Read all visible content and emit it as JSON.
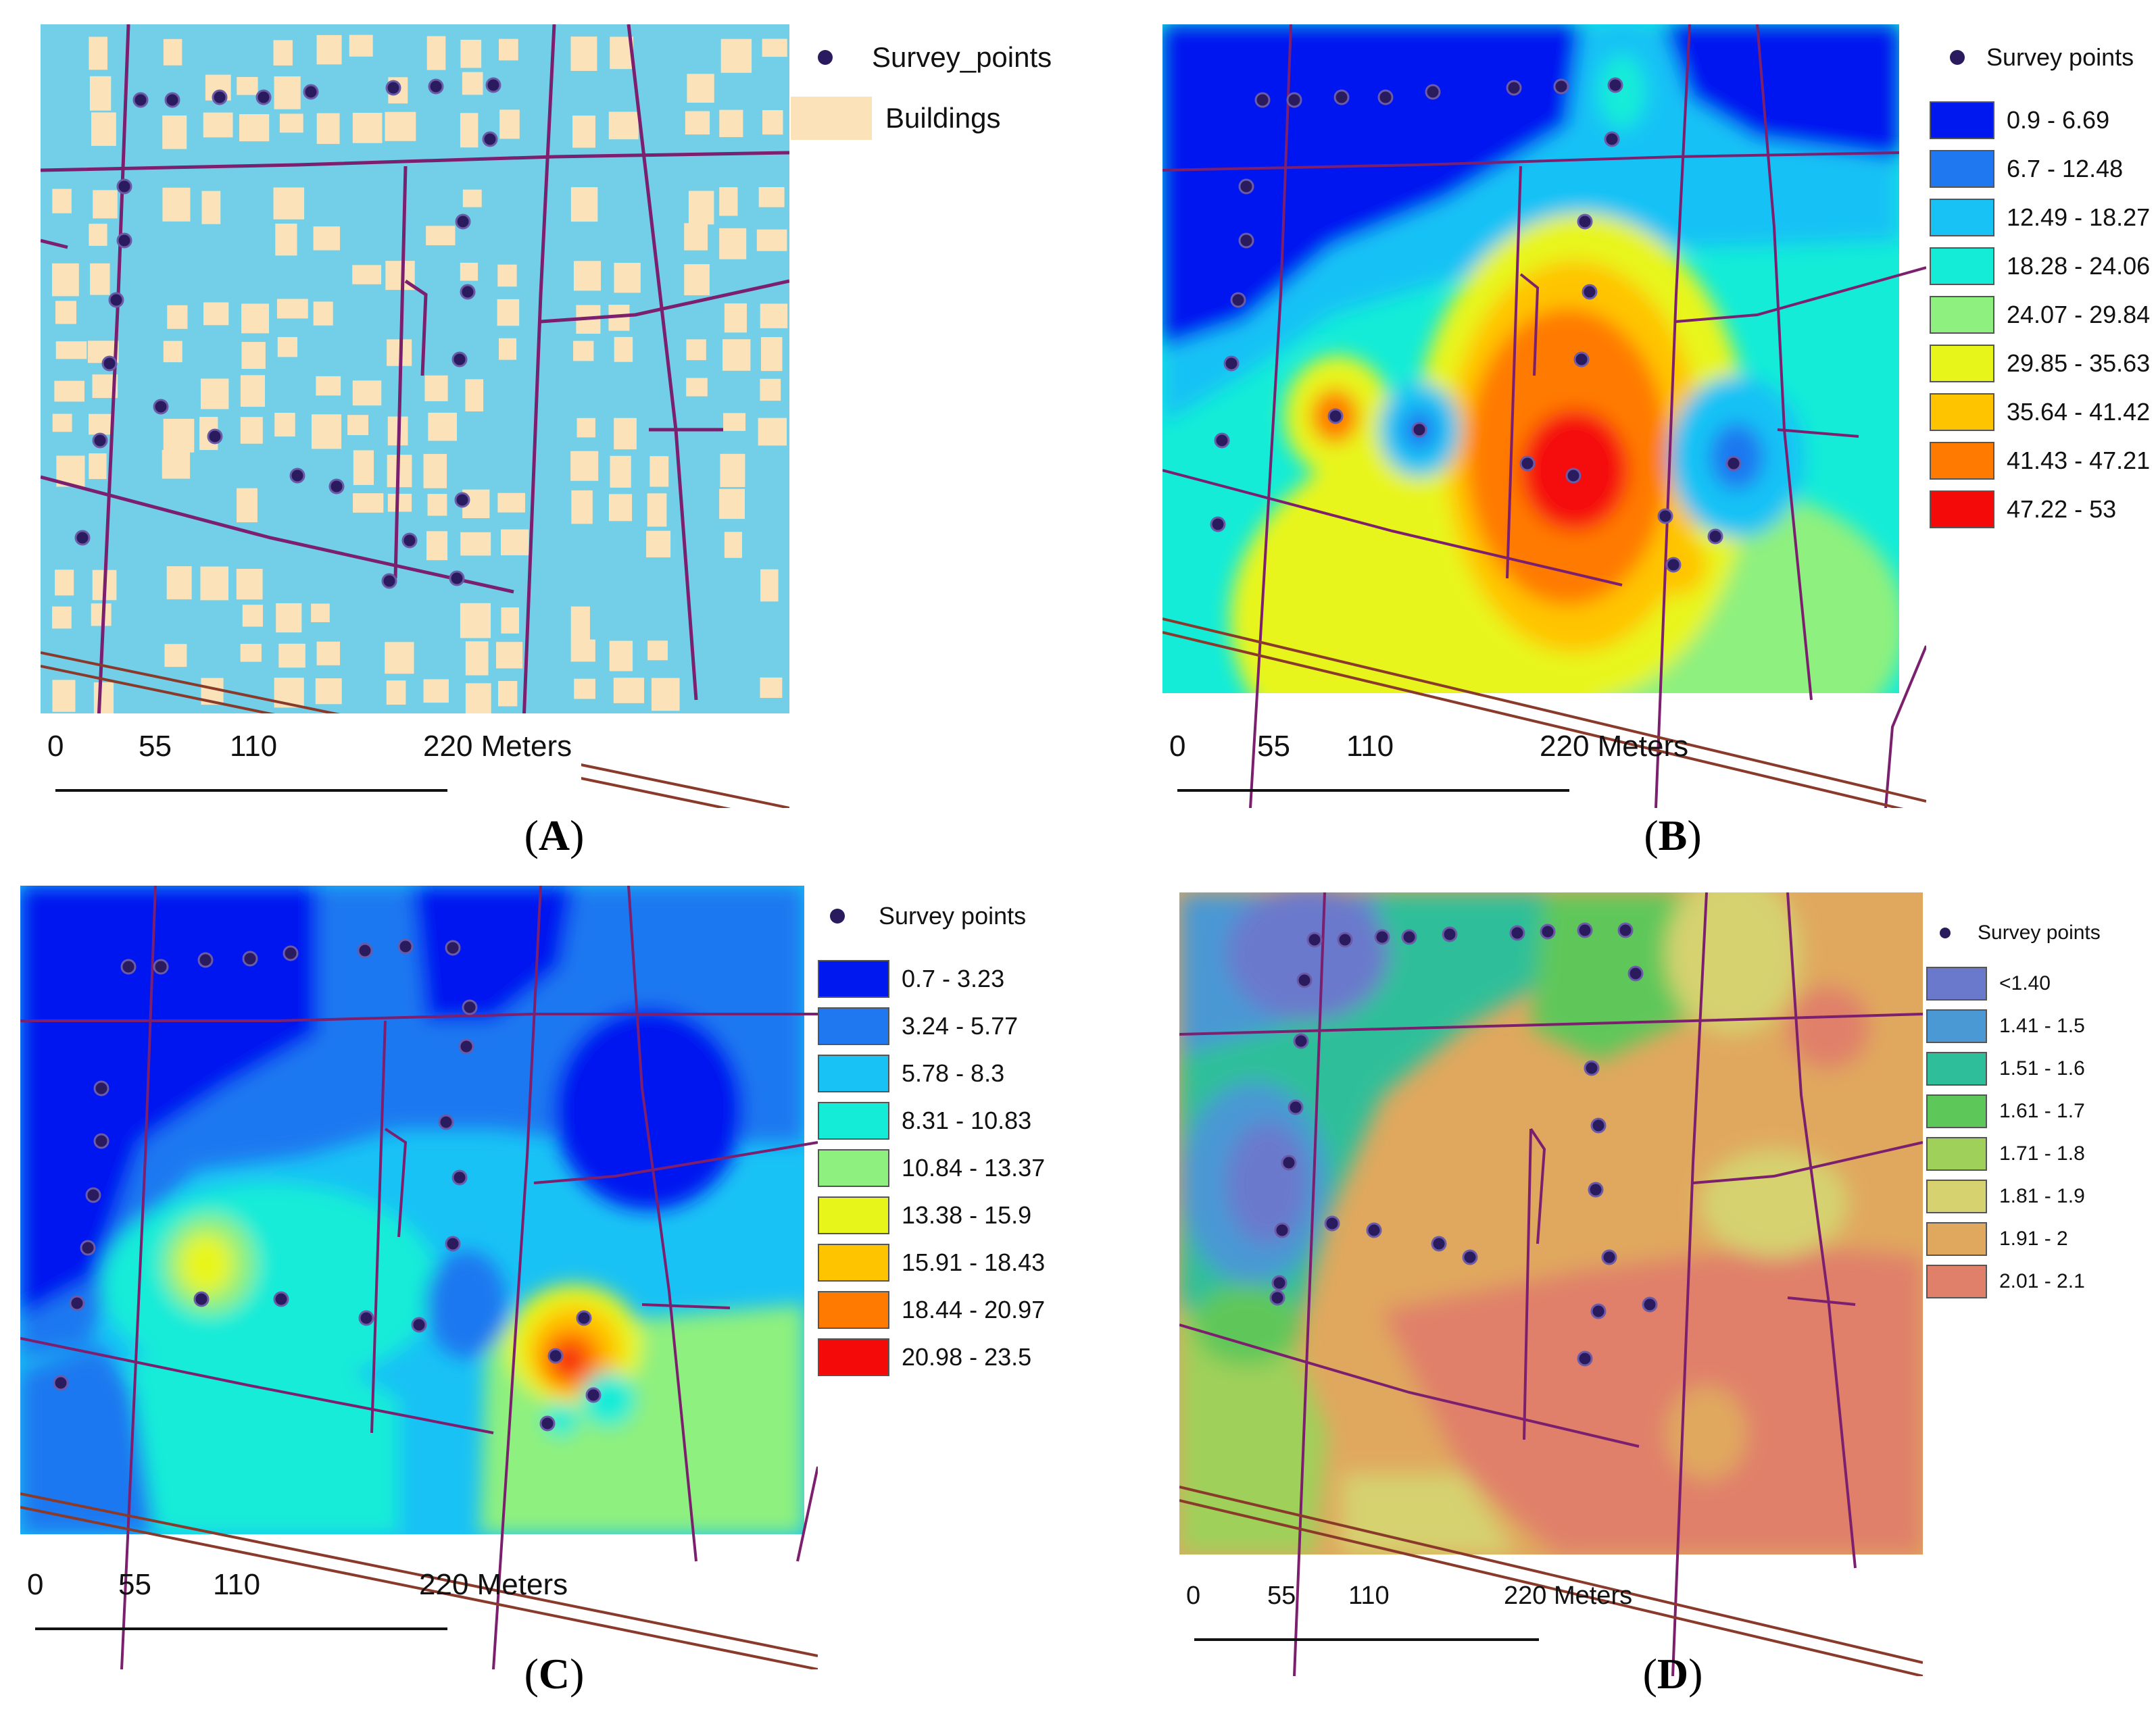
{
  "panels": {
    "A": {
      "caption": "A",
      "legend": {
        "points_label": "Survey_points",
        "buildings_label": "Buildings"
      },
      "colors": {
        "background": "#73cfe8",
        "buildings": "#fbe2b8",
        "roads": "#7b1f6e",
        "points": "#2a1a5e",
        "rail": "#8a3a2a"
      },
      "scale": [
        "0",
        "55",
        "110",
        "220 Meters"
      ]
    },
    "B": {
      "caption": "B",
      "legend": {
        "points_label": "Survey  points",
        "classes": [
          {
            "label": "0.9 - 6.69",
            "color": "#0018f0"
          },
          {
            "label": "6.7 - 12.48",
            "color": "#1f78f0"
          },
          {
            "label": "12.49 - 18.27",
            "color": "#19c2f5"
          },
          {
            "label": "18.28 - 24.06",
            "color": "#14ecd8"
          },
          {
            "label": "24.07 - 29.84",
            "color": "#8ef07e"
          },
          {
            "label": "29.85 - 35.63",
            "color": "#e8f51a"
          },
          {
            "label": "35.64 - 41.42",
            "color": "#ffc400"
          },
          {
            "label": "41.43 - 47.21",
            "color": "#ff7a00"
          },
          {
            "label": "47.22 - 53",
            "color": "#f50a0a"
          }
        ]
      },
      "scale": [
        "0",
        "55",
        "110",
        "220 Meters"
      ]
    },
    "C": {
      "caption": "C",
      "legend": {
        "points_label": "Survey  points",
        "classes": [
          {
            "label": "0.7 - 3.23",
            "color": "#0018f0"
          },
          {
            "label": "3.24 - 5.77",
            "color": "#1f78f0"
          },
          {
            "label": "5.78 - 8.3",
            "color": "#19c2f5"
          },
          {
            "label": "8.31 - 10.83",
            "color": "#14ecd8"
          },
          {
            "label": "10.84 - 13.37",
            "color": "#8ef07e"
          },
          {
            "label": "13.38 - 15.9",
            "color": "#e8f51a"
          },
          {
            "label": "15.91 - 18.43",
            "color": "#ffc400"
          },
          {
            "label": "18.44 - 20.97",
            "color": "#ff7a00"
          },
          {
            "label": "20.98 - 23.5",
            "color": "#f50a0a"
          }
        ]
      },
      "scale": [
        "0",
        "55",
        "110",
        "220 Meters"
      ]
    },
    "D": {
      "caption": "D",
      "legend": {
        "points_label": "Survey  points",
        "classes": [
          {
            "label": "<1.40",
            "color": "#6a79cc"
          },
          {
            "label": "1.41 - 1.5",
            "color": "#4a98d4"
          },
          {
            "label": "1.51 - 1.6",
            "color": "#2ebf9a"
          },
          {
            "label": "1.61 - 1.7",
            "color": "#5ec75a"
          },
          {
            "label": "1.71 - 1.8",
            "color": "#9fd05a"
          },
          {
            "label": "1.81 - 1.9",
            "color": "#d6d270"
          },
          {
            "label": "1.91 - 2",
            "color": "#e0a85e"
          },
          {
            "label": "2.01 - 2.1",
            "color": "#e0806a"
          }
        ]
      },
      "scale": [
        "0",
        "55",
        "110",
        "220 Meters"
      ]
    }
  }
}
